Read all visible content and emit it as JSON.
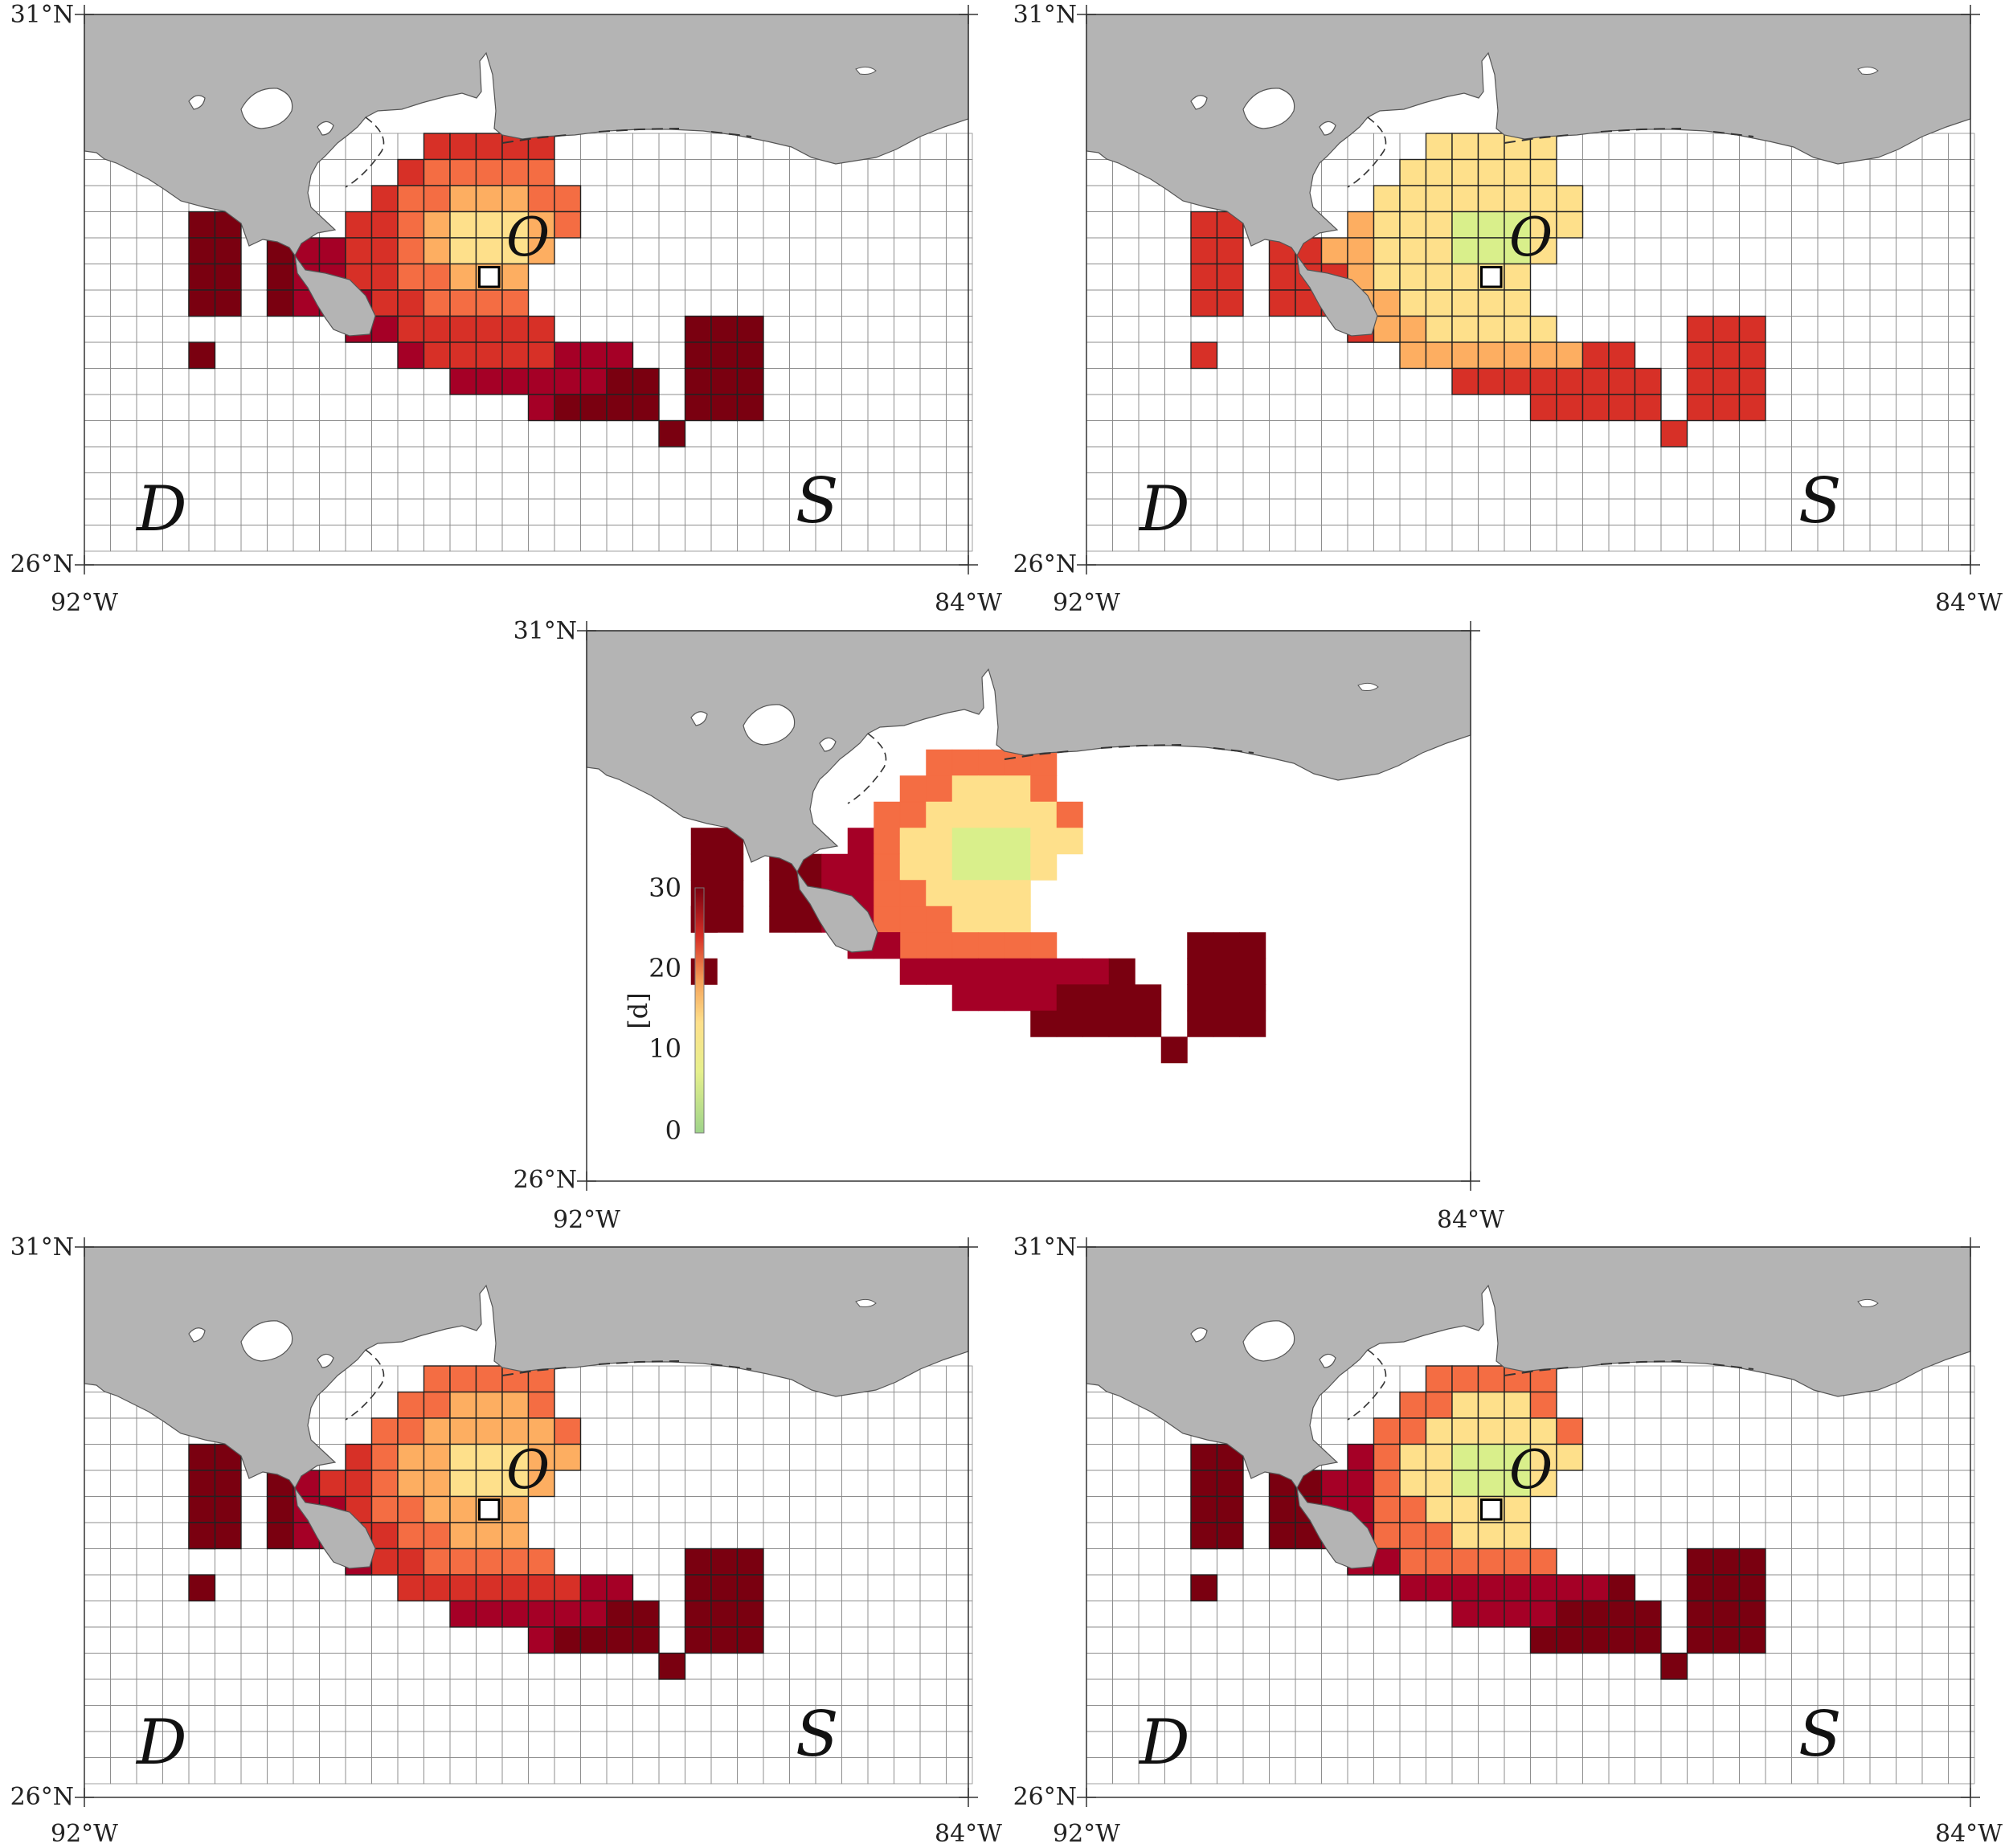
{
  "map": {
    "lat_labels": {
      "top": "31°N",
      "bottom": "26°N"
    },
    "lon_labels": {
      "left": "92°W",
      "right": "84°W"
    },
    "regions": {
      "destination": "D",
      "source": "S",
      "origin": "O"
    },
    "colorbar": {
      "label": "[d]",
      "ticks": [
        "0",
        "10",
        "20",
        "30"
      ],
      "min": 0,
      "max": 30
    },
    "colors": {
      "land": "#b4b4b4",
      "ocean": "#ffffff",
      "scale": [
        "#9ed38a",
        "#d9ef8b",
        "#fee08b",
        "#fdae61",
        "#f46d43",
        "#d73027",
        "#a50026",
        "#7a0010"
      ]
    }
  },
  "panels": [
    {
      "id": "top-left",
      "palette": "dark"
    },
    {
      "id": "top-right",
      "palette": "light"
    },
    {
      "id": "center",
      "palette": "mixed"
    },
    {
      "id": "bottom-left",
      "palette": "mid"
    },
    {
      "id": "bottom-right",
      "palette": "mid2"
    }
  ]
}
